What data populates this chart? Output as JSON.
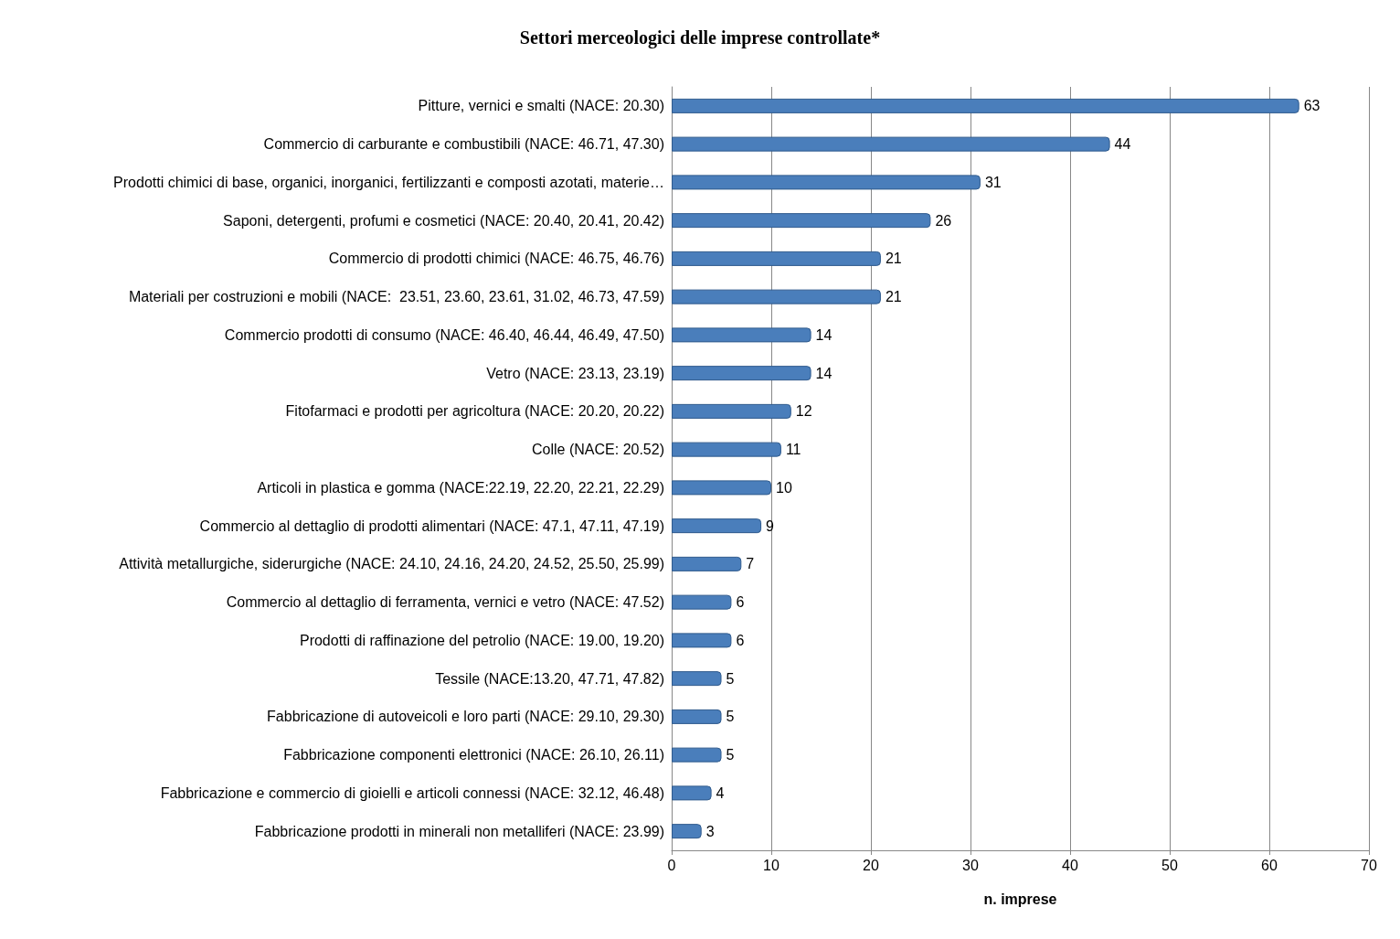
{
  "chart_data": {
    "type": "bar",
    "orientation": "horizontal",
    "title": "Settori merceologici delle imprese controllate*",
    "xlabel": "n. imprese",
    "categories": [
      "Pitture, vernici e smalti (NACE: 20.30)",
      "Commercio di carburante e combustibili (NACE: 46.71, 47.30)",
      "Prodotti chimici di base, organici, inorganici, fertilizzanti e composti azotati, materie…",
      "Saponi, detergenti, profumi e cosmetici (NACE: 20.40, 20.41, 20.42)",
      "Commercio di prodotti chimici (NACE: 46.75, 46.76)",
      "Materiali per costruzioni e mobili (NACE:  23.51, 23.60, 23.61, 31.02, 46.73, 47.59)",
      "Commercio prodotti di consumo (NACE: 46.40, 46.44, 46.49, 47.50)",
      "Vetro (NACE: 23.13, 23.19)",
      "Fitofarmaci e prodotti per agricoltura (NACE: 20.20, 20.22)",
      "Colle (NACE: 20.52)",
      "Articoli in plastica e gomma (NACE:22.19, 22.20, 22.21, 22.29)",
      "Commercio al dettaglio di prodotti alimentari (NACE: 47.1, 47.11, 47.19)",
      "Attività metallurgiche, siderurgiche (NACE: 24.10, 24.16, 24.20, 24.52, 25.50, 25.99)",
      "Commercio al dettaglio di ferramenta, vernici e vetro (NACE: 47.52)",
      "Prodotti di raffinazione del petrolio (NACE: 19.00, 19.20)",
      "Tessile (NACE:13.20, 47.71, 47.82)",
      "Fabbricazione di autoveicoli e loro parti (NACE: 29.10, 29.30)",
      "Fabbricazione componenti elettronici (NACE: 26.10, 26.11)",
      "Fabbricazione e commercio di gioielli e articoli connessi (NACE: 32.12, 46.48)",
      "Fabbricazione prodotti in minerali non metalliferi (NACE: 23.99)"
    ],
    "values": [
      63,
      44,
      31,
      26,
      21,
      21,
      14,
      14,
      12,
      11,
      10,
      9,
      7,
      6,
      6,
      5,
      5,
      5,
      4,
      3
    ],
    "color": "#4a7ebb",
    "xlim": [
      0,
      70
    ],
    "xticks": [
      0,
      10,
      20,
      30,
      40,
      50,
      60,
      70
    ],
    "grid": "x",
    "data_labels": true
  }
}
